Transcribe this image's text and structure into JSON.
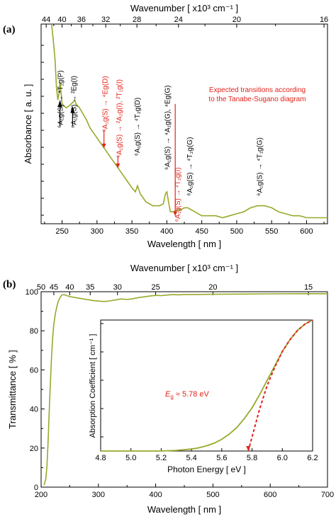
{
  "chart_data": [
    {
      "panel_label": "(a)",
      "type": "line",
      "xlabel": "Wavelength [ nm ]",
      "ylabel": "Absorbance [ a. u. ]",
      "top_axis_label": "Wavenumber [ x10³ cm⁻¹ ]",
      "xlim": [
        220,
        630
      ],
      "ylim": [
        0,
        1
      ],
      "x_ticks": [
        250,
        300,
        350,
        400,
        450,
        500,
        550,
        600
      ],
      "top_ticks": [
        44,
        40,
        36,
        32,
        28,
        24,
        20,
        16
      ],
      "line_color": "#9aa82c",
      "series": [
        {
          "x": [
            235,
            238,
            240,
            242,
            244,
            246,
            247,
            248,
            250,
            253,
            256,
            260,
            263,
            266,
            268,
            270,
            275,
            280,
            285,
            290,
            300,
            310,
            320,
            330,
            340,
            350,
            355,
            358,
            362,
            370,
            380,
            390,
            395,
            398,
            400,
            402,
            405,
            410,
            415,
            420,
            425,
            430,
            435,
            440,
            450,
            460,
            470,
            480,
            490,
            500,
            510,
            520,
            530,
            540,
            550,
            560,
            570,
            580,
            590,
            600,
            610,
            620,
            630
          ],
          "y": [
            1.0,
            0.9,
            0.82,
            0.68,
            0.62,
            0.66,
            0.71,
            0.68,
            0.6,
            0.59,
            0.58,
            0.59,
            0.6,
            0.61,
            0.62,
            0.6,
            0.58,
            0.55,
            0.52,
            0.48,
            0.43,
            0.38,
            0.33,
            0.28,
            0.23,
            0.18,
            0.16,
            0.19,
            0.15,
            0.11,
            0.09,
            0.09,
            0.1,
            0.15,
            0.16,
            0.12,
            0.06,
            0.06,
            0.07,
            0.07,
            0.08,
            0.08,
            0.07,
            0.06,
            0.04,
            0.04,
            0.04,
            0.03,
            0.04,
            0.05,
            0.06,
            0.08,
            0.09,
            0.09,
            0.08,
            0.06,
            0.05,
            0.04,
            0.04,
            0.03,
            0.03,
            0.03,
            0.03
          ]
        }
      ],
      "annotations_black": [
        {
          "text": "⁶A₁g(S) → ⁴T₁g(P)",
          "x": 247,
          "y": 0.48
        },
        {
          "text": "⁶A₁g(S) → ²Eg(I)",
          "x": 266,
          "y": 0.48
        },
        {
          "text": "⁶A₁g(S) → ⁴T₂g(D)",
          "x": 357,
          "y": 0.34
        },
        {
          "text": "⁶A₁g(S) → ⁴A₁g(G), ⁴Eg(G)",
          "x": 400,
          "y": 0.27
        },
        {
          "text": "⁶A₁g(S) → ⁴T₂g(G)",
          "x": 432,
          "y": 0.14
        },
        {
          "text": "⁶A₁g(S) → ⁴T₁g(G)",
          "x": 532,
          "y": 0.14
        }
      ],
      "annotations_red": [
        {
          "text": "⁶A₁g(S) → ⁴Eg(D)",
          "x": 311,
          "y": 0.46
        },
        {
          "text": "⁶A₁g(S) → ²A₂g(I), ²T₁g(I)",
          "x": 331,
          "y": 0.33
        },
        {
          "text": "⁶A₁g(S) → ²T₂g(I)",
          "x": 415,
          "y": 0.01
        }
      ],
      "legend_note_lines": [
        "Expected transitions according",
        "to the Tanabe-Sugano diagram"
      ],
      "legend_note_color": "#e2231a"
    },
    {
      "panel_label": "(b)",
      "type": "line",
      "xlabel": "Wavelength [ nm ]",
      "ylabel": "Transmittance [ % ]",
      "top_axis_label": "Wavenumber [ x10³ cm⁻¹ ]",
      "xlim": [
        200,
        700
      ],
      "ylim": [
        0,
        100
      ],
      "x_ticks": [
        200,
        300,
        400,
        500,
        600,
        700
      ],
      "y_ticks": [
        0,
        20,
        40,
        60,
        80,
        100
      ],
      "top_ticks": [
        50,
        45,
        40,
        35,
        30,
        25,
        20,
        15
      ],
      "line_color": "#9aa82c",
      "series": [
        {
          "x": [
            205,
            208,
            210,
            212,
            215,
            218,
            220,
            222,
            225,
            228,
            230,
            233,
            236,
            240,
            245,
            250,
            260,
            270,
            280,
            290,
            300,
            310,
            320,
            330,
            340,
            350,
            360,
            370,
            380,
            390,
            400,
            410,
            420,
            430,
            440,
            450,
            470,
            500,
            550,
            600,
            650,
            700
          ],
          "y": [
            1,
            4,
            10,
            22,
            45,
            65,
            76,
            83,
            89,
            93,
            95,
            97,
            98.3,
            98.5,
            98.0,
            97.5,
            97.0,
            96.5,
            96.0,
            95.5,
            95.2,
            95.0,
            95.3,
            95.8,
            96.3,
            96.0,
            96.4,
            97.0,
            97.4,
            97.8,
            98.1,
            98.0,
            98.3,
            98.5,
            98.4,
            98.6,
            98.6,
            98.7,
            98.8,
            98.9,
            99.0,
            99.0
          ]
        }
      ],
      "inset": {
        "type": "line",
        "xlabel": "Photon Energy [ eV ]",
        "ylabel": "Absorption Coefficient [ cm⁻¹ ]",
        "xlim": [
          4.8,
          6.2
        ],
        "ylim": [
          0,
          1
        ],
        "x_ticks": [
          4.8,
          5.0,
          5.2,
          5.4,
          5.6,
          5.8,
          6.0,
          6.2
        ],
        "line_color": "#9aa82c",
        "fit_color": "#e2231a",
        "label_prefix": "E",
        "label_subscript": "g",
        "label_value": " ≈ 5.78 eV",
        "series": [
          {
            "x": [
              4.8,
              4.9,
              5.0,
              5.1,
              5.2,
              5.3,
              5.4,
              5.45,
              5.5,
              5.55,
              5.6,
              5.65,
              5.7,
              5.75,
              5.8,
              5.85,
              5.9,
              5.95,
              6.0,
              6.05,
              6.1,
              6.15,
              6.2
            ],
            "y": [
              0.0,
              0.0,
              0.0,
              0.0,
              0.0,
              0.005,
              0.015,
              0.025,
              0.04,
              0.06,
              0.09,
              0.13,
              0.18,
              0.25,
              0.33,
              0.43,
              0.54,
              0.65,
              0.76,
              0.85,
              0.92,
              0.97,
              1.0
            ]
          }
        ],
        "fit": {
          "x": [
            5.775,
            5.85,
            5.9,
            5.95,
            6.0,
            6.05,
            6.1,
            6.15,
            6.2
          ],
          "y": [
            0.0,
            0.32,
            0.5,
            0.64,
            0.76,
            0.85,
            0.92,
            0.97,
            1.0
          ]
        }
      }
    }
  ]
}
